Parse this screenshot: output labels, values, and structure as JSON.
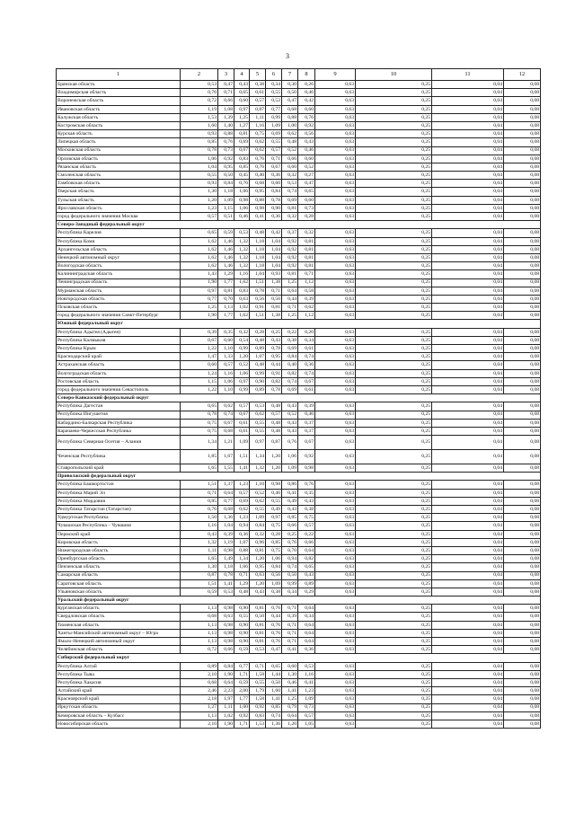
{
  "page_number": "3",
  "headers": [
    "1",
    "2",
    "3",
    "4",
    "5",
    "6",
    "7",
    "8",
    "9",
    "10",
    "11",
    "12"
  ],
  "rows": [
    {
      "n": "Брянская область",
      "v": [
        "0,53",
        "0,47",
        "0,43",
        "0,38",
        "0,34",
        "0,30",
        "0,26",
        "0,63",
        "0,25",
        "0,04",
        "0,08"
      ]
    },
    {
      "n": "Владимирская область",
      "v": [
        "0,76",
        "0,71",
        "0,65",
        "0,61",
        "0,55",
        "0,50",
        "0,46",
        "0,63",
        "0,25",
        "0,04",
        "0,08"
      ]
    },
    {
      "n": "Воронежская область",
      "v": [
        "0,72",
        "0,66",
        "0,60",
        "0,57",
        "0,52",
        "0,47",
        "0,42",
        "0,63",
        "0,25",
        "0,04",
        "0,08"
      ]
    },
    {
      "n": "Ивановская область",
      "v": [
        "1,19",
        "1,08",
        "0,97",
        "0,87",
        "0,77",
        "0,68",
        "0,60",
        "0,63",
        "0,25",
        "0,04",
        "0,08"
      ]
    },
    {
      "n": "Калужская область",
      "v": [
        "1,53",
        "1,39",
        "1,25",
        "1,11",
        "0,99",
        "0,88",
        "0,76",
        "0,63",
        "0,25",
        "0,04",
        "0,08"
      ]
    },
    {
      "n": "Костромская область",
      "v": [
        "1,60",
        "1,40",
        "1,27",
        "1,16",
        "1,09",
        "1,00",
        "0,92",
        "0,63",
        "0,25",
        "0,04",
        "0,08"
      ]
    },
    {
      "n": "Курская область",
      "v": [
        "0,93",
        "0,88",
        "0,81",
        "0,75",
        "0,69",
        "0,62",
        "0,56",
        "0,63",
        "0,25",
        "0,04",
        "0,08"
      ]
    },
    {
      "n": "Липецкая область",
      "v": [
        "0,85",
        "0,76",
        "0,69",
        "0,62",
        "0,55",
        "0,48",
        "0,43",
        "0,63",
        "0,25",
        "0,04",
        "0,08"
      ]
    },
    {
      "n": "Московская область",
      "v": [
        "0,78",
        "0,73",
        "0,67",
        "0,62",
        "0,57",
        "0,52",
        "0,46",
        "0,63",
        "0,25",
        "0,04",
        "0,08"
      ]
    },
    {
      "n": "Орловская область",
      "v": [
        "1,06",
        "0,92",
        "0,83",
        "0,76",
        "0,71",
        "0,66",
        "0,60",
        "0,63",
        "0,25",
        "0,04",
        "0,08"
      ]
    },
    {
      "n": "Рязанская область",
      "v": [
        "1,04",
        "0,95",
        "0,85",
        "0,76",
        "0,67",
        "0,60",
        "0,52",
        "0,63",
        "0,25",
        "0,04",
        "0,08"
      ]
    },
    {
      "n": "Смоленская область",
      "v": [
        "0,55",
        "0,50",
        "0,45",
        "0,40",
        "0,36",
        "0,32",
        "0,27",
        "0,63",
        "0,25",
        "0,04",
        "0,08"
      ]
    },
    {
      "n": "Тамбовская область",
      "v": [
        "0,93",
        "0,84",
        "0,76",
        "0,68",
        "0,60",
        "0,53",
        "0,47",
        "0,63",
        "0,25",
        "0,04",
        "0,08"
      ]
    },
    {
      "n": "Тверская область",
      "v": [
        "1,30",
        "1,18",
        "1,06",
        "0,95",
        "0,84",
        "0,74",
        "0,65",
        "0,63",
        "0,25",
        "0,04",
        "0,08"
      ]
    },
    {
      "n": "Тульская область",
      "v": [
        "1,20",
        "1,09",
        "0,98",
        "0,88",
        "0,78",
        "0,69",
        "0,60",
        "0,63",
        "0,25",
        "0,04",
        "0,08"
      ]
    },
    {
      "n": "Ярославская область",
      "v": [
        "1,23",
        "1,15",
        "1,06",
        "0,98",
        "0,90",
        "0,81",
        "0,73",
        "0,63",
        "0,25",
        "0,04",
        "0,08"
      ]
    },
    {
      "n": "город федерального значения Москва",
      "v": [
        "0,57",
        "0,51",
        "0,46",
        "0,41",
        "0,36",
        "0,32",
        "0,28",
        "0,63",
        "0,25",
        "0,04",
        "0,08"
      ]
    },
    {
      "s": "Северо-Западный федеральный округ"
    },
    {
      "n": "Республика Карелия",
      "v": [
        "0,65",
        "0,59",
        "0,53",
        "0,48",
        "0,42",
        "0,37",
        "0,32",
        "0,63",
        "0,25",
        "0,04",
        "0,08"
      ]
    },
    {
      "n": "Республика Коми",
      "v": [
        "1,62",
        "1,46",
        "1,32",
        "1,18",
        "1,04",
        "0,92",
        "0,81",
        "0,63",
        "0,25",
        "0,04",
        "0,08"
      ]
    },
    {
      "n": "Архангельская область",
      "v": [
        "1,62",
        "1,46",
        "1,32",
        "1,18",
        "1,04",
        "0,92",
        "0,81",
        "0,63",
        "0,25",
        "0,04",
        "0,08"
      ]
    },
    {
      "n": "Ненецкий автономный округ",
      "v": [
        "1,62",
        "1,46",
        "1,32",
        "1,18",
        "1,04",
        "0,92",
        "0,81",
        "0,63",
        "0,25",
        "0,04",
        "0,08"
      ]
    },
    {
      "n": "Вологодская область",
      "v": [
        "1,62",
        "1,46",
        "1,32",
        "1,18",
        "1,04",
        "0,92",
        "0,81",
        "0,63",
        "0,25",
        "0,04",
        "0,08"
      ]
    },
    {
      "n": "Калининградская область",
      "v": [
        "1,43",
        "1,29",
        "1,16",
        "1,04",
        "0,93",
        "0,81",
        "0,71",
        "0,63",
        "0,25",
        "0,04",
        "0,08"
      ]
    },
    {
      "n": "Ленинградская область",
      "v": [
        "1,90",
        "1,77",
        "1,62",
        "1,51",
        "1,38",
        "1,25",
        "1,12",
        "0,63",
        "0,25",
        "0,04",
        "0,08"
      ]
    },
    {
      "n": "Мурманская область",
      "v": [
        "0,97",
        "0,81",
        "0,83",
        "0,78",
        "0,71",
        "0,64",
        "0,58",
        "0,63",
        "0,25",
        "0,04",
        "0,08"
      ]
    },
    {
      "n": "Новгородская область",
      "v": [
        "0,77",
        "0,70",
        "0,63",
        "0,56",
        "0,50",
        "0,44",
        "0,39",
        "0,63",
        "0,25",
        "0,04",
        "0,08"
      ]
    },
    {
      "n": "Псковская область",
      "v": [
        "1,25",
        "1,13",
        "1,02",
        "0,91",
        "0,81",
        "0,71",
        "0,62",
        "0,63",
        "0,25",
        "0,04",
        "0,08"
      ]
    },
    {
      "n": "город федерального значения Санкт-Петербург",
      "v": [
        "1,90",
        "1,77",
        "1,62",
        "1,51",
        "1,38",
        "1,25",
        "1,12",
        "0,63",
        "0,25",
        "0,04",
        "0,08"
      ]
    },
    {
      "s": "Южный федеральный округ"
    },
    {
      "n": "Республика Адыгея (Адыгея)",
      "v": [
        "0,39",
        "0,35",
        "0,32",
        "0,28",
        "0,25",
        "0,22",
        "0,20",
        "0,63",
        "0,25",
        "0,04",
        "0,08"
      ]
    },
    {
      "n": "Республика Калмыкия",
      "v": [
        "0,67",
        "0,60",
        "0,54",
        "0,48",
        "0,43",
        "0,38",
        "0,34",
        "0,63",
        "0,25",
        "0,04",
        "0,08"
      ]
    },
    {
      "n": "Республика Крым",
      "v": [
        "1,22",
        "1,10",
        "0,99",
        "0,89",
        "0,78",
        "0,69",
        "0,61",
        "0,63",
        "0,25",
        "0,04",
        "0,08"
      ]
    },
    {
      "n": "Краснодарский край",
      "v": [
        "1,47",
        "1,33",
        "1,20",
        "1,07",
        "0,95",
        "0,84",
        "0,74",
        "0,63",
        "0,25",
        "0,04",
        "0,08"
      ]
    },
    {
      "n": "Астраханская область",
      "v": [
        "0,60",
        "0,57",
        "0,52",
        "0,48",
        "0,44",
        "0,40",
        "0,36",
        "0,63",
        "0,25",
        "0,04",
        "0,08"
      ]
    },
    {
      "n": "Волгоградская область",
      "v": [
        "1,24",
        "1,16",
        "1,06",
        "0,99",
        "0,91",
        "0,82",
        "0,74",
        "0,63",
        "0,25",
        "0,04",
        "0,08"
      ]
    },
    {
      "n": "Ростовская область",
      "v": [
        "1,15",
        "1,06",
        "0,97",
        "0,90",
        "0,82",
        "0,74",
        "0,67",
        "0,63",
        "0,25",
        "0,04",
        "0,08"
      ]
    },
    {
      "n": "город федерального значения Севастополь",
      "v": [
        "1,22",
        "1,10",
        "0,99",
        "0,89",
        "0,78",
        "0,69",
        "0,61",
        "0,63",
        "0,25",
        "0,04",
        "0,08"
      ]
    },
    {
      "s": "Северо-Кавказский федеральный округ"
    },
    {
      "n": "Республика Дагестан",
      "v": [
        "0,65",
        "0,62",
        "0,57",
        "0,53",
        "0,48",
        "0,43",
        "0,39",
        "0,63",
        "0,25",
        "0,04",
        "0,08"
      ]
    },
    {
      "n": "Республика Ингушетия",
      "v": [
        "0,78",
        "0,74",
        "0,67",
        "0,62",
        "0,57",
        "0,52",
        "0,46",
        "0,63",
        "0,25",
        "0,04",
        "0,08"
      ]
    },
    {
      "n": "Кабардино-Балкарская Республика",
      "v": [
        "0,75",
        "0,67",
        "0,61",
        "0,55",
        "0,48",
        "0,43",
        "0,37",
        "0,63",
        "0,25",
        "0,04",
        "0,08"
      ]
    },
    {
      "n": "Карачаево-Черкесская Республика",
      "v": [
        "0,75",
        "0,68",
        "0,61",
        "0,55",
        "0,48",
        "0,43",
        "0,37",
        "0,63",
        "0,25",
        "0,04",
        "0,08"
      ]
    },
    {
      "n": "Республика Северная Осетия – Алания",
      "t": 1,
      "v": [
        "1,34",
        "1,21",
        "1,09",
        "0,97",
        "0,87",
        "0,76",
        "0,67",
        "0,63",
        "0,25",
        "0,04",
        "0,08"
      ]
    },
    {
      "n": "Чеченская Республика",
      "t": 1,
      "v": [
        "1,85",
        "1,67",
        "1,51",
        "1,34",
        "1,20",
        "1,06",
        "0,92",
        "0,63",
        "0,25",
        "0,04",
        "0,08"
      ]
    },
    {
      "n": "Ставропольский край",
      "v": [
        "1,65",
        "1,55",
        "1,41",
        "1,32",
        "1,20",
        "1,09",
        "0,98",
        "0,63",
        "0,25",
        "0,04",
        "0,08"
      ]
    },
    {
      "s": "Приволжский федеральный округ"
    },
    {
      "n": "Республика Башкортостан",
      "v": [
        "1,51",
        "1,37",
        "1,23",
        "1,10",
        "0,98",
        "0,86",
        "0,76",
        "0,63",
        "0,25",
        "0,04",
        "0,08"
      ]
    },
    {
      "n": "Республика Марий Эл",
      "v": [
        "0,71",
        "0,64",
        "0,57",
        "0,52",
        "0,46",
        "0,41",
        "0,35",
        "0,63",
        "0,25",
        "0,04",
        "0,08"
      ]
    },
    {
      "n": "Республика Мордовия",
      "v": [
        "0,85",
        "0,77",
        "0,69",
        "0,62",
        "0,55",
        "0,49",
        "0,43",
        "0,63",
        "0,25",
        "0,04",
        "0,08"
      ]
    },
    {
      "n": "Республика Татарстан (Татарстан)",
      "v": [
        "0,76",
        "0,68",
        "0,62",
        "0,55",
        "0,49",
        "0,43",
        "0,38",
        "0,63",
        "0,25",
        "0,04",
        "0,08"
      ]
    },
    {
      "n": "Удмуртская Республика",
      "v": [
        "1,50",
        "1,36",
        "1,23",
        "1,09",
        "0,97",
        "0,85",
        "0,75",
        "0,63",
        "0,25",
        "0,04",
        "0,08"
      ]
    },
    {
      "n": "Чувашская Республика – Чувашия",
      "v": [
        "1,16",
        "1,04",
        "0,94",
        "0,84",
        "0,75",
        "0,66",
        "0,57",
        "0,63",
        "0,25",
        "0,04",
        "0,08"
      ]
    },
    {
      "n": "Пермский край",
      "v": [
        "0,43",
        "0,39",
        "0,36",
        "0,32",
        "0,28",
        "0,25",
        "0,22",
        "0,63",
        "0,25",
        "0,04",
        "0,08"
      ]
    },
    {
      "n": "Кировская область",
      "v": [
        "1,32",
        "1,19",
        "1,07",
        "0,96",
        "0,85",
        "0,76",
        "0,66",
        "0,63",
        "0,25",
        "0,04",
        "0,08"
      ]
    },
    {
      "n": "Нижегородская область",
      "v": [
        "1,11",
        "0,98",
        "0,88",
        "0,81",
        "0,75",
        "0,70",
        "0,64",
        "0,63",
        "0,25",
        "0,04",
        "0,08"
      ]
    },
    {
      "n": "Оренбургская область",
      "v": [
        "1,65",
        "1,49",
        "1,34",
        "1,20",
        "1,06",
        "0,94",
        "0,82",
        "0,63",
        "0,25",
        "0,04",
        "0,08"
      ]
    },
    {
      "n": "Пензенская область",
      "v": [
        "1,30",
        "1,18",
        "1,06",
        "0,95",
        "0,84",
        "0,74",
        "0,65",
        "0,63",
        "0,25",
        "0,04",
        "0,08"
      ]
    },
    {
      "n": "Самарская область",
      "v": [
        "0,87",
        "0,78",
        "0,71",
        "0,63",
        "0,56",
        "0,50",
        "0,43",
        "0,63",
        "0,25",
        "0,04",
        "0,08"
      ]
    },
    {
      "n": "Саратовская область",
      "v": [
        "1,51",
        "1,41",
        "1,29",
        "1,20",
        "1,09",
        "0,99",
        "0,89",
        "0,63",
        "0,25",
        "0,04",
        "0,08"
      ]
    },
    {
      "n": "Ульяновская область",
      "v": [
        "0,59",
        "0,53",
        "0,48",
        "0,43",
        "0,38",
        "0,34",
        "0,29",
        "0,63",
        "0,25",
        "0,04",
        "0,08"
      ]
    },
    {
      "s": "Уральский федеральный округ"
    },
    {
      "n": "Курганская область",
      "v": [
        "1,13",
        "0,98",
        "0,90",
        "0,81",
        "0,76",
        "0,71",
        "0,64",
        "0,63",
        "0,25",
        "0,04",
        "0,08"
      ]
    },
    {
      "n": "Свердловская область",
      "v": [
        "0,68",
        "0,63",
        "0,55",
        "0,50",
        "0,44",
        "0,39",
        "0,34",
        "0,63",
        "0,25",
        "0,04",
        "0,08"
      ]
    },
    {
      "n": "Тюменская область",
      "v": [
        "1,13",
        "0,98",
        "0,90",
        "0,81",
        "0,76",
        "0,71",
        "0,64",
        "0,63",
        "0,25",
        "0,04",
        "0,08"
      ]
    },
    {
      "n": "Ханты-Мансийский автономный округ – Югра",
      "v": [
        "1,13",
        "0,98",
        "0,90",
        "0,81",
        "0,76",
        "0,71",
        "0,64",
        "0,63",
        "0,25",
        "0,04",
        "0,08"
      ]
    },
    {
      "n": "Ямало-Ненецкий автономный округ",
      "v": [
        "1,13",
        "0,98",
        "0,90",
        "0,81",
        "0,76",
        "0,71",
        "0,64",
        "0,63",
        "0,25",
        "0,04",
        "0,08"
      ]
    },
    {
      "n": "Челябинская область",
      "v": [
        "0,72",
        "0,66",
        "0,59",
        "0,53",
        "0,47",
        "0,41",
        "0,36",
        "0,63",
        "0,25",
        "0,04",
        "0,08"
      ]
    },
    {
      "s": "Сибирский федеральный округ"
    },
    {
      "n": "Республика Алтай",
      "v": [
        "0,89",
        "0,84",
        "0,77",
        "0,71",
        "0,65",
        "0,60",
        "0,53",
        "0,63",
        "0,25",
        "0,04",
        "0,08"
      ]
    },
    {
      "n": "Республика Тыва",
      "v": [
        "2,10",
        "1,90",
        "1,71",
        "1,58",
        "1,44",
        "1,30",
        "1,16",
        "0,63",
        "0,25",
        "0,04",
        "0,08"
      ]
    },
    {
      "n": "Республика Хакасия",
      "v": [
        "0,68",
        "0,64",
        "0,59",
        "0,55",
        "0,50",
        "0,46",
        "0,41",
        "0,63",
        "0,25",
        "0,04",
        "0,08"
      ]
    },
    {
      "n": "Алтайский край",
      "v": [
        "2,46",
        "2,23",
        "2,00",
        "1,79",
        "1,60",
        "1,41",
        "1,23",
        "0,63",
        "0,25",
        "0,04",
        "0,08"
      ]
    },
    {
      "n": "Красноярский край",
      "v": [
        "2,18",
        "1,97",
        "1,77",
        "1,58",
        "1,41",
        "1,25",
        "1,09",
        "0,63",
        "0,25",
        "0,04",
        "0,08"
      ]
    },
    {
      "n": "Иркутская область",
      "v": [
        "1,27",
        "1,11",
        "1,00",
        "0,92",
        "0,85",
        "0,79",
        "0,73",
        "0,63",
        "0,25",
        "0,04",
        "0,08"
      ]
    },
    {
      "n": "Кемеровская область – Кузбасс",
      "v": [
        "1,13",
        "1,02",
        "0,92",
        "0,83",
        "0,74",
        "0,64",
        "0,57",
        "0,63",
        "0,25",
        "0,04",
        "0,08"
      ]
    },
    {
      "n": "Новосибирская область",
      "v": [
        "2,10",
        "1,90",
        "1,71",
        "1,53",
        "1,36",
        "1,20",
        "1,05",
        "0,63",
        "0,25",
        "0,04",
        "0,08"
      ]
    }
  ]
}
